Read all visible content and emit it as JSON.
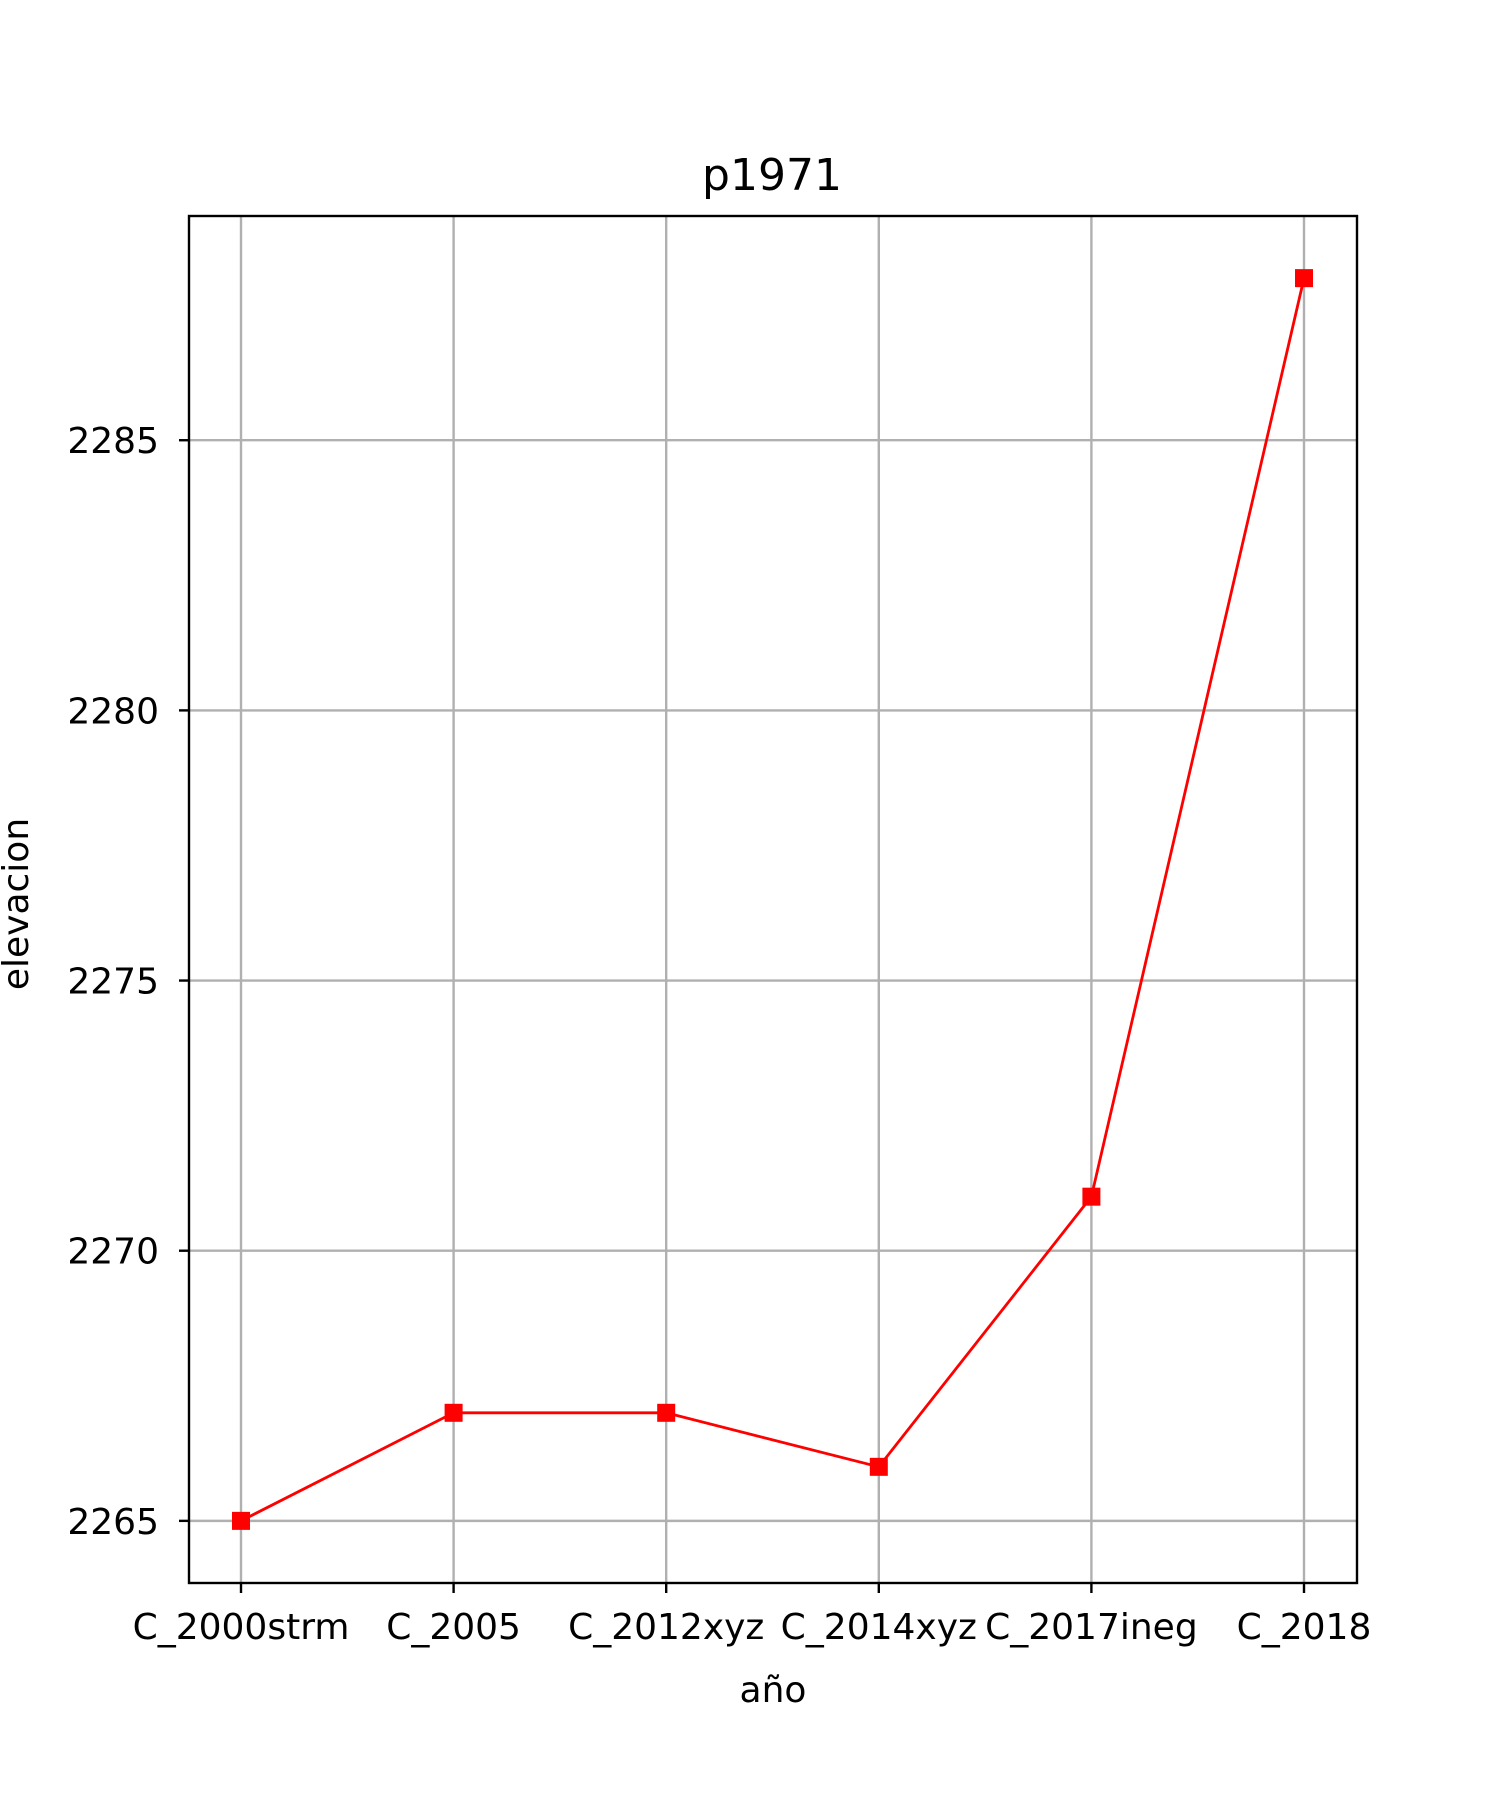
{
  "chart_data": {
    "type": "line",
    "title": "p1971",
    "xlabel": "año",
    "ylabel": "elevacion",
    "categories": [
      "C_2000strm",
      "C_2005",
      "C_2012xyz",
      "C_2014xyz",
      "C_2017ineg",
      "C_2018"
    ],
    "series": [
      {
        "name": "elevacion",
        "values": [
          2265,
          2267,
          2267,
          2266,
          2271,
          2288
        ],
        "color": "#ff0000",
        "marker": "square"
      }
    ],
    "yticks": [
      2265,
      2270,
      2275,
      2280,
      2285
    ],
    "ylim": [
      2263.85,
      2289.15
    ],
    "grid": true,
    "legend": "none"
  }
}
